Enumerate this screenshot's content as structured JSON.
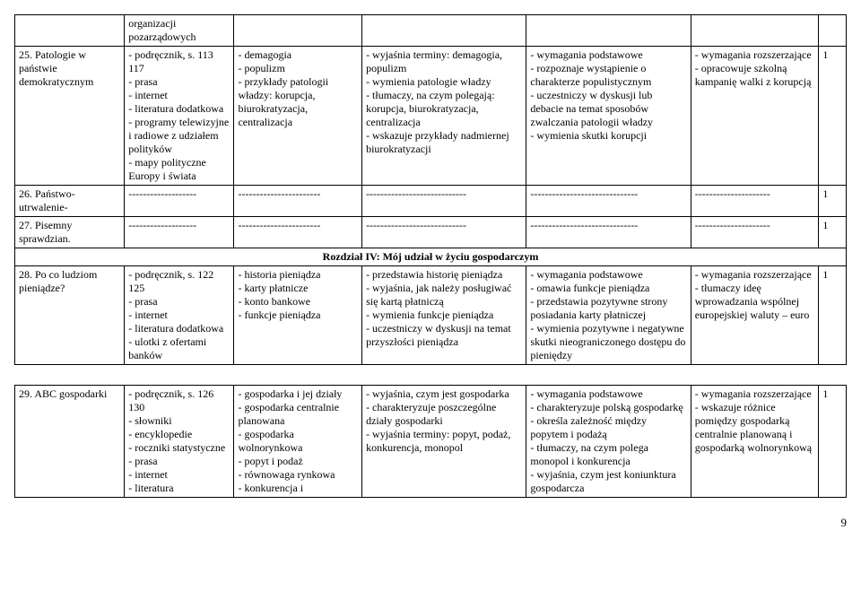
{
  "rows": [
    {
      "c0": "",
      "c1": "organizacji pozarządowych",
      "c2": "",
      "c3": "",
      "c4": "",
      "c5": "",
      "c6": ""
    },
    {
      "c0": "25. Patologie w państwie demokratycznym",
      "c1": "- podręcznik, s. 113 117\n- prasa\n- internet\n- literatura dodatkowa\n- programy telewizyjne i radiowe z udziałem polityków\n- mapy polityczne Europy i świata",
      "c2": "- demagogia\n- populizm\n- przykłady patologii władzy: korupcja, biurokratyzacja, centralizacja",
      "c3": "- wyjaśnia terminy: demagogia, populizm\n- wymienia patologie władzy\n- tłumaczy, na czym polegają: korupcja, biurokratyzacja, centralizacja\n- wskazuje przykłady nadmiernej biurokratyzacji",
      "c4": "- wymagania podstawowe\n- rozpoznaje wystąpienie o charakterze populistycznym\n- uczestniczy w dyskusji lub debacie na temat sposobów zwalczania patologii władzy\n- wymienia skutki korupcji",
      "c5": "- wymagania rozszerzające\n- opracowuje szkolną kampanię walki z korupcją",
      "c6": "1"
    },
    {
      "c0": "26. Państwo- utrwalenie-",
      "c1": "-------------------",
      "c2": "-----------------------",
      "c3": "----------------------------",
      "c4": "------------------------------",
      "c5": "---------------------",
      "c6": "1"
    },
    {
      "c0": "27. Pisemny sprawdzian.",
      "c1": "-------------------",
      "c2": "-----------------------",
      "c3": "----------------------------",
      "c4": "------------------------------",
      "c5": "---------------------",
      "c6": "1"
    }
  ],
  "section_header": "Rozdział IV: Mój udział w życiu gospodarczym",
  "row28": {
    "c0": "28. Po co ludziom pieniądze?",
    "c1": "- podręcznik, s. 122 125\n- prasa\n- internet\n- literatura dodatkowa\n- ulotki z ofertami banków",
    "c2": "- historia pieniądza\n- karty płatnicze\n- konto bankowe\n- funkcje pieniądza",
    "c3": "- przedstawia historię pieniądza\n- wyjaśnia, jak należy posługiwać się kartą płatniczą\n- wymienia funkcje pieniądza\n- uczestniczy w dyskusji na temat przyszłości pieniądza",
    "c4": "- wymagania podstawowe\n- omawia funkcje pieniądza\n- przedstawia pozytywne strony posiadania karty płatniczej\n- wymienia pozytywne i negatywne skutki nieograniczonego dostępu do pieniędzy",
    "c5": "- wymagania rozszerzające\n- tłumaczy ideę wprowadzania wspólnej europejskiej waluty – euro",
    "c6": "1"
  },
  "row29": {
    "c0": "29. ABC gospodarki",
    "c1": "- podręcznik, s. 126 130\n- słowniki\n- encyklopedie\n- roczniki statystyczne\n- prasa\n- internet\n- literatura",
    "c2": "- gospodarka i jej działy\n- gospodarka centralnie planowana\n- gospodarka wolnorynkowa\n- popyt i podaż\n- równowaga rynkowa\n- konkurencja i",
    "c3": "- wyjaśnia, czym jest gospodarka\n- charakteryzuje poszczególne działy gospodarki\n- wyjaśnia terminy: popyt, podaż, konkurencja, monopol",
    "c4": "- wymagania podstawowe\n- charakteryzuje polską gospodarkę\n- określa zależność między popytem i podażą\n- tłumaczy, na czym polega monopol i konkurencja\n- wyjaśnia, czym jest koniunktura gospodarcza",
    "c5": "- wymagania rozszerzające\n- wskazuje różnice pomiędzy gospodarką centralnie planowaną i gospodarką wolnorynkową",
    "c6": "1"
  },
  "page_number": "9"
}
